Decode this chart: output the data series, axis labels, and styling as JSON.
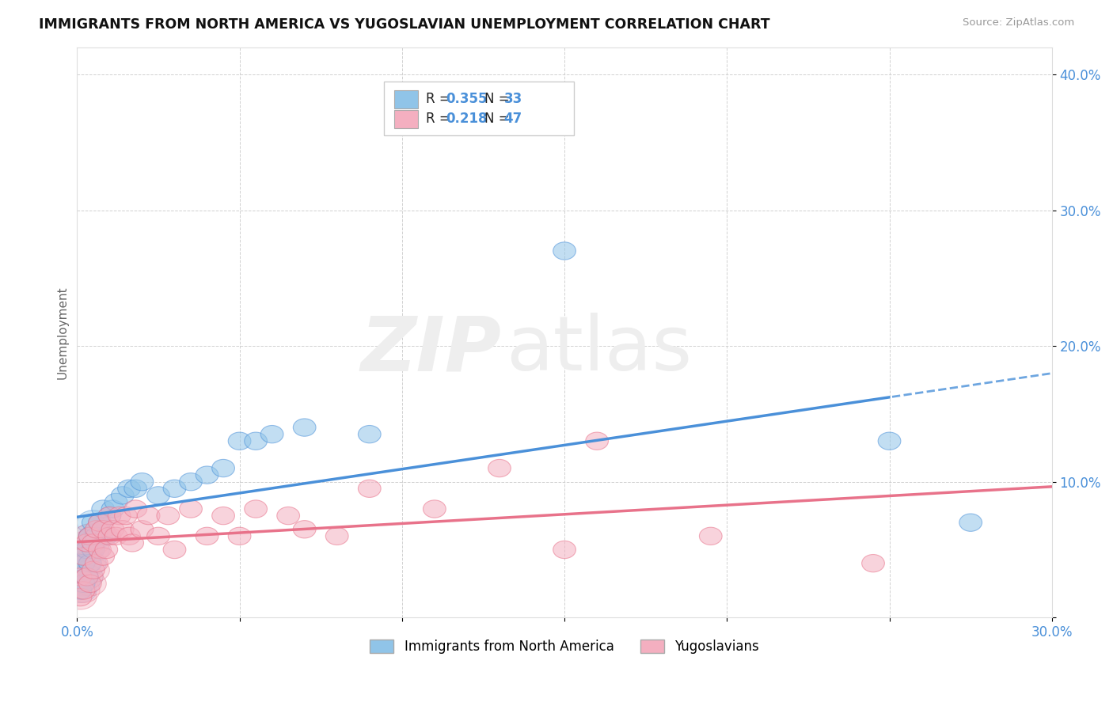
{
  "title": "IMMIGRANTS FROM NORTH AMERICA VS YUGOSLAVIAN UNEMPLOYMENT CORRELATION CHART",
  "source": "Source: ZipAtlas.com",
  "ylabel": "Unemployment",
  "xlim": [
    0,
    0.3
  ],
  "ylim": [
    0,
    0.42
  ],
  "xtick_positions": [
    0.0,
    0.05,
    0.1,
    0.15,
    0.2,
    0.25,
    0.3
  ],
  "xtick_labels": [
    "0.0%",
    "",
    "",
    "",
    "",
    "",
    "30.0%"
  ],
  "ytick_positions": [
    0.0,
    0.1,
    0.2,
    0.3,
    0.4
  ],
  "ytick_labels": [
    "",
    "10.0%",
    "20.0%",
    "30.0%",
    "40.0%"
  ],
  "R_blue": 0.355,
  "N_blue": 33,
  "R_pink": 0.218,
  "N_pink": 47,
  "blue_color": "#90c4e8",
  "pink_color": "#f4afc0",
  "blue_line_color": "#4a90d9",
  "pink_line_color": "#e8728a",
  "legend_labels": [
    "Immigrants from North America",
    "Yugoslavians"
  ],
  "blue_scatter_x": [
    0.001,
    0.002,
    0.002,
    0.003,
    0.003,
    0.004,
    0.004,
    0.005,
    0.005,
    0.006,
    0.007,
    0.008,
    0.009,
    0.01,
    0.011,
    0.012,
    0.014,
    0.016,
    0.018,
    0.02,
    0.025,
    0.03,
    0.035,
    0.04,
    0.045,
    0.05,
    0.055,
    0.06,
    0.07,
    0.09,
    0.15,
    0.25,
    0.275
  ],
  "blue_scatter_y": [
    0.02,
    0.025,
    0.04,
    0.03,
    0.05,
    0.04,
    0.06,
    0.05,
    0.07,
    0.06,
    0.07,
    0.08,
    0.06,
    0.075,
    0.08,
    0.085,
    0.09,
    0.095,
    0.095,
    0.1,
    0.09,
    0.095,
    0.1,
    0.105,
    0.11,
    0.13,
    0.13,
    0.135,
    0.14,
    0.135,
    0.27,
    0.13,
    0.07
  ],
  "pink_scatter_x": [
    0.001,
    0.001,
    0.002,
    0.002,
    0.003,
    0.003,
    0.004,
    0.004,
    0.005,
    0.005,
    0.006,
    0.006,
    0.007,
    0.007,
    0.008,
    0.008,
    0.009,
    0.01,
    0.01,
    0.011,
    0.012,
    0.013,
    0.014,
    0.015,
    0.016,
    0.017,
    0.018,
    0.02,
    0.022,
    0.025,
    0.028,
    0.03,
    0.035,
    0.04,
    0.045,
    0.05,
    0.055,
    0.065,
    0.07,
    0.08,
    0.09,
    0.11,
    0.13,
    0.15,
    0.16,
    0.195,
    0.245
  ],
  "pink_scatter_y": [
    0.015,
    0.03,
    0.02,
    0.045,
    0.03,
    0.055,
    0.025,
    0.06,
    0.035,
    0.055,
    0.04,
    0.065,
    0.05,
    0.07,
    0.045,
    0.065,
    0.05,
    0.06,
    0.075,
    0.065,
    0.06,
    0.075,
    0.065,
    0.075,
    0.06,
    0.055,
    0.08,
    0.065,
    0.075,
    0.06,
    0.075,
    0.05,
    0.08,
    0.06,
    0.075,
    0.06,
    0.08,
    0.075,
    0.065,
    0.06,
    0.095,
    0.08,
    0.11,
    0.05,
    0.13,
    0.06,
    0.04
  ]
}
